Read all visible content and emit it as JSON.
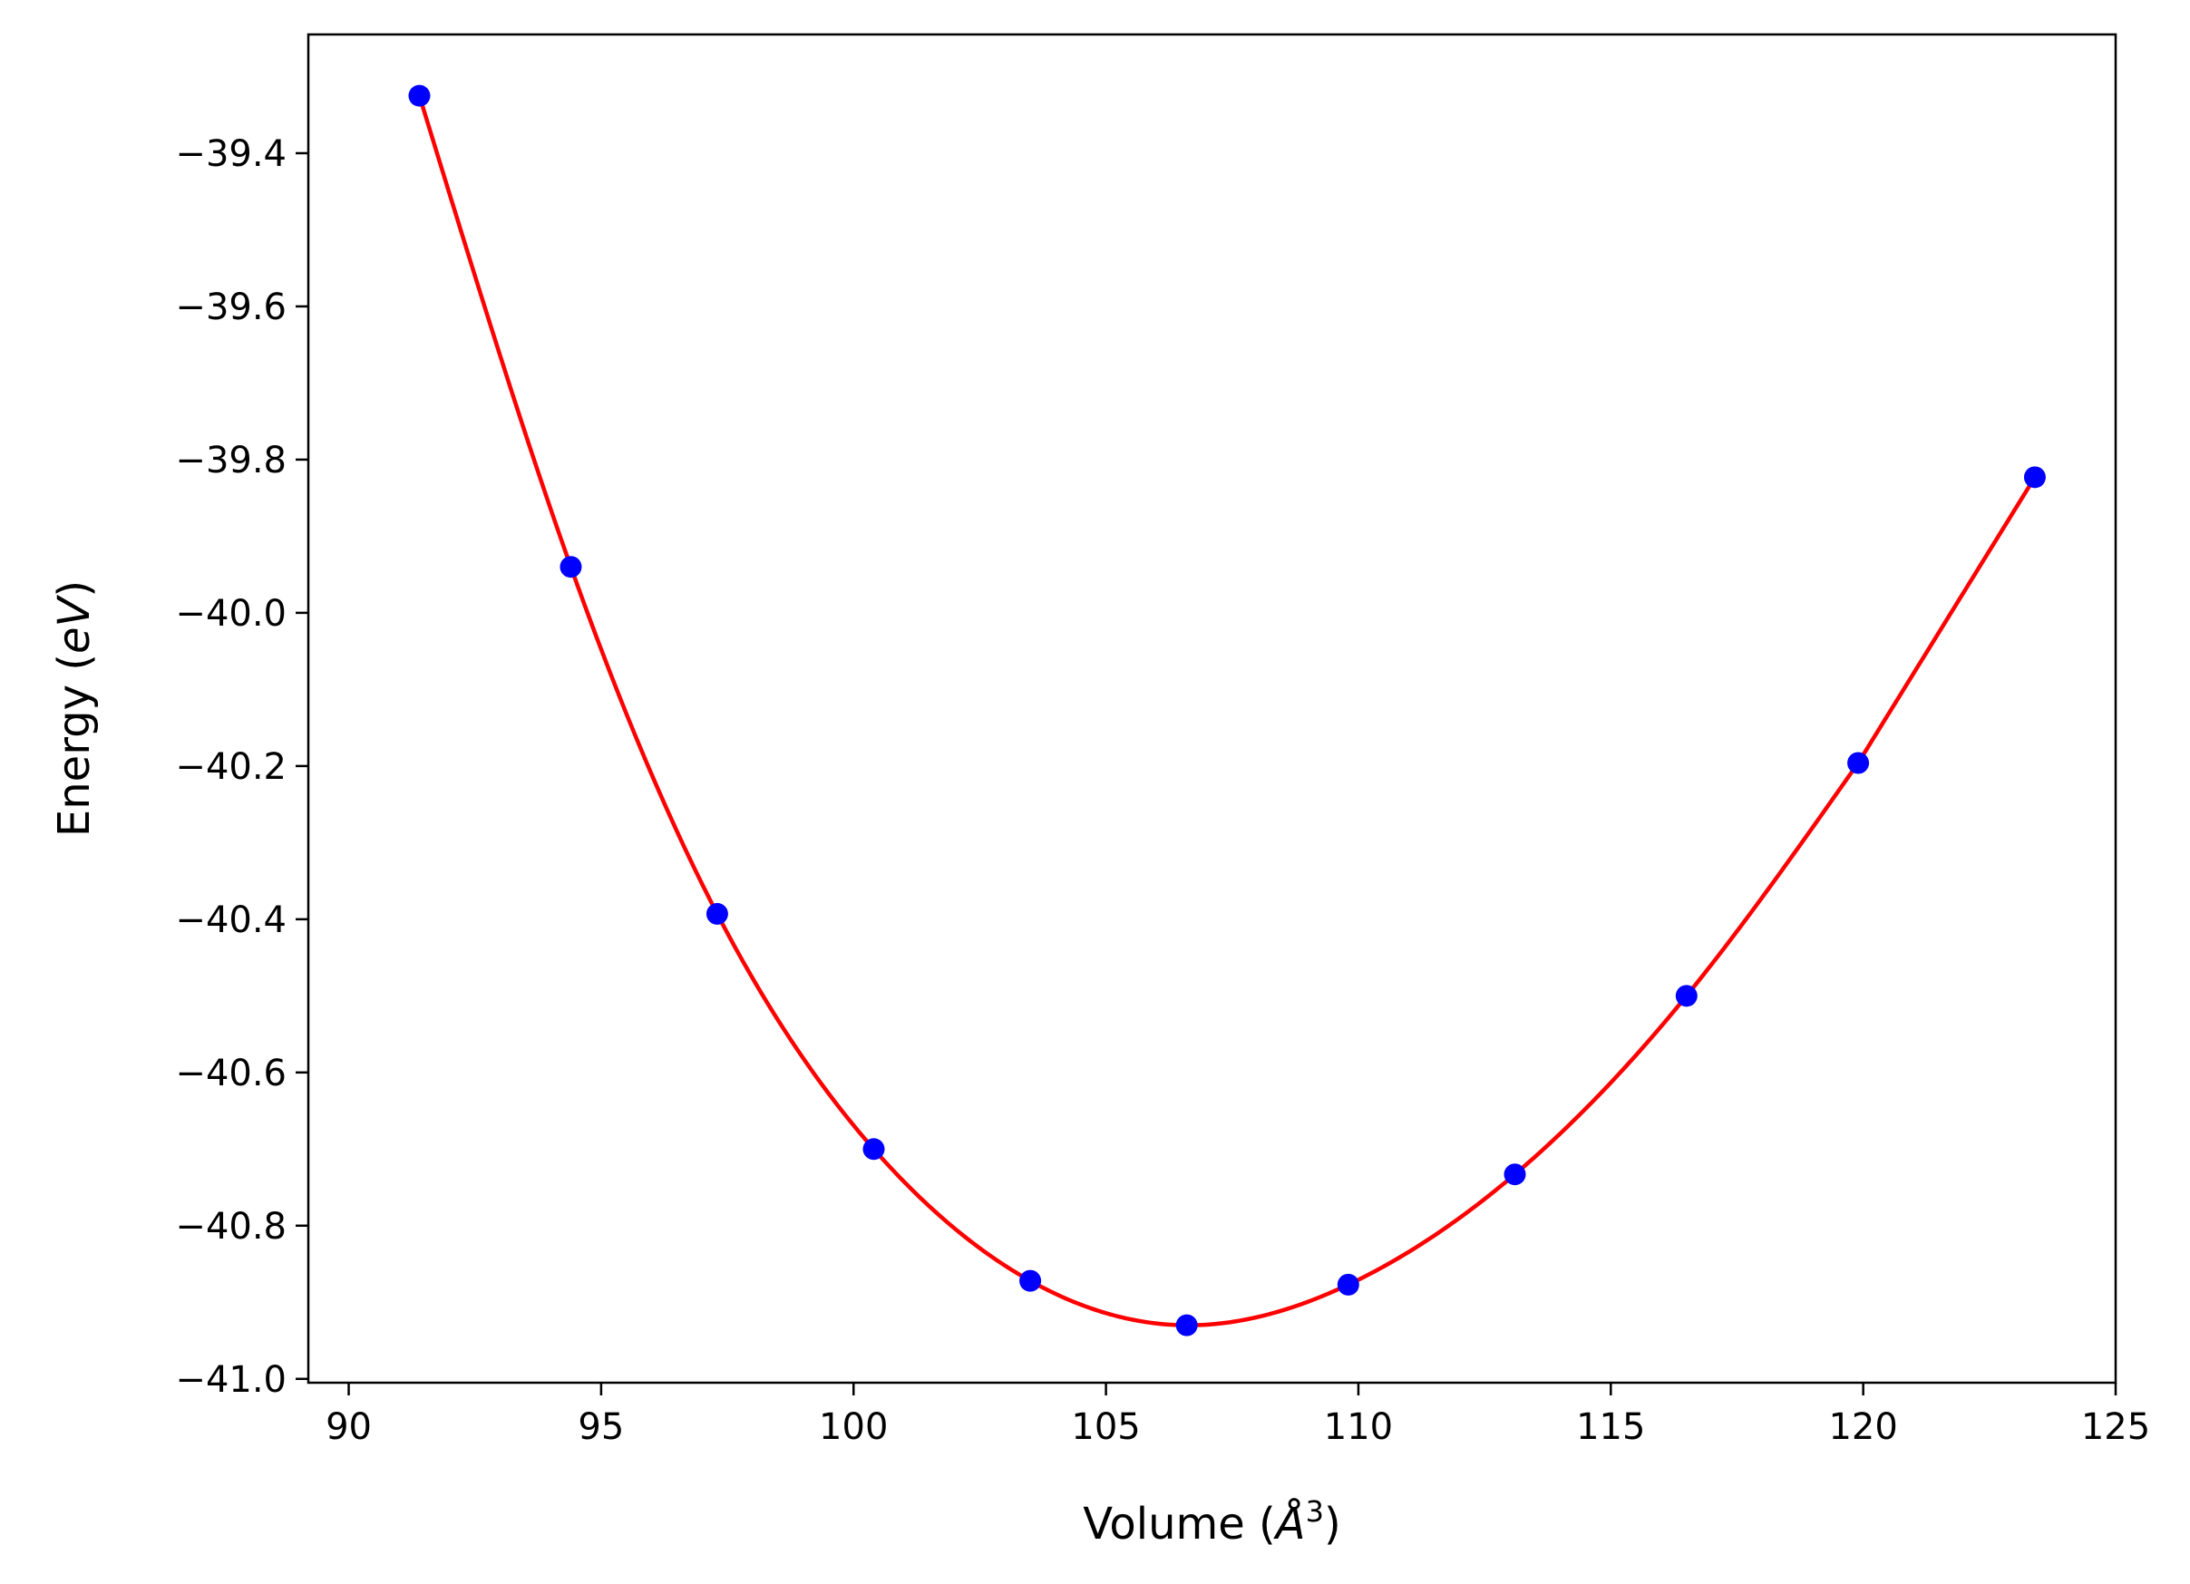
{
  "chart_data": {
    "type": "scatter",
    "title": "",
    "xlabel": {
      "prefix": "Volume (",
      "var": "Å",
      "sup": "3",
      "suffix": ")"
    },
    "ylabel": {
      "prefix": "Energy (",
      "var": "eV",
      "suffix": ")"
    },
    "xlim": [
      89.2,
      125
    ],
    "ylim": [
      -41.005,
      -39.245
    ],
    "xticks": [
      90,
      95,
      100,
      105,
      110,
      115,
      120,
      125
    ],
    "xtick_labels": [
      "90",
      "95",
      "100",
      "105",
      "110",
      "115",
      "120",
      "125"
    ],
    "yticks": [
      -39.4,
      -39.6,
      -39.8,
      -40.0,
      -40.2,
      -40.4,
      -40.6,
      -40.8,
      -41.0
    ],
    "ytick_labels": [
      "−39.4",
      "−39.6",
      "−39.8",
      "−40.0",
      "−40.2",
      "−40.4",
      "−40.6",
      "−40.8",
      "−41.0"
    ],
    "grid": false,
    "series": [
      {
        "kind": "points",
        "color": "#0000ff",
        "x": [
          91.4,
          94.4,
          97.3,
          100.4,
          103.5,
          106.6,
          109.8,
          113.1,
          116.5,
          119.9,
          123.4
        ],
        "y": [
          -39.325,
          -39.94,
          -40.393,
          -40.7,
          -40.872,
          -40.93,
          -40.877,
          -40.733,
          -40.5,
          -40.196,
          -39.823
        ]
      },
      {
        "kind": "fit-curve",
        "color": "#ff0000",
        "x": [
          91.4,
          94.4,
          97.3,
          100.4,
          103.5,
          106.6,
          109.8,
          113.1,
          116.5,
          119.9,
          123.4
        ],
        "y": [
          -39.325,
          -39.94,
          -40.393,
          -40.7,
          -40.872,
          -40.93,
          -40.877,
          -40.733,
          -40.5,
          -40.196,
          -39.823
        ]
      }
    ]
  }
}
